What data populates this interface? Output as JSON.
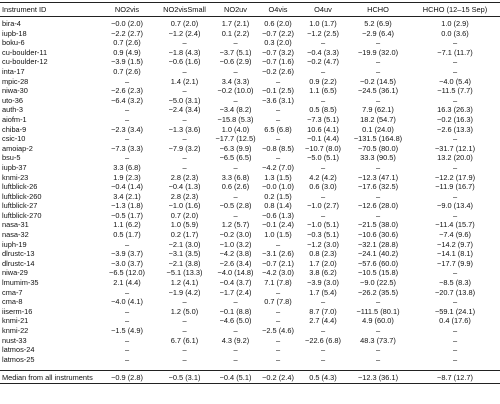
{
  "table": {
    "header": [
      "Instrument ID",
      "NO2vis",
      "NO2visSmall",
      "NO2uv",
      "O4vis",
      "O4uv",
      "HCHO",
      "HCHO (12–15 Sep)"
    ],
    "rows": [
      [
        "bira-4",
        "−0.0 (2.0)",
        "0.7 (2.0)",
        "1.7 (2.1)",
        "0.6 (2.0)",
        "1.0 (1.7)",
        "5.2 (6.9)",
        "1.0 (2.9)"
      ],
      [
        "iupb-18",
        "−2.2 (2.7)",
        "−1.2 (2.4)",
        "0.1 (2.2)",
        "−0.7 (2.2)",
        "−1.2 (2.5)",
        "−2.9 (6.4)",
        "0.0 (3.6)"
      ],
      [
        "boku-6",
        "0.7 (2.6)",
        "–",
        "–",
        "0.3 (2.0)",
        "–",
        "–",
        "–"
      ],
      [
        "cu-boulder-11",
        "0.9 (4.9)",
        "−1.8 (4.3)",
        "−3.7 (5.1)",
        "−0.7 (3.2)",
        "−0.4 (3.3)",
        "−19.9 (32.0)",
        "−7.1 (11.7)"
      ],
      [
        "cu-boulder-12",
        "−3.9 (1.5)",
        "−0.6 (1.6)",
        "−0.6 (2.9)",
        "−0.7 (1.6)",
        "−0.2 (4.7)",
        "–",
        "–"
      ],
      [
        "inta-17",
        "0.7 (2.6)",
        "–",
        "–",
        "−0.2 (2.6)",
        "–",
        "–",
        "–"
      ],
      [
        "mpic-28",
        "–",
        "1.4 (2.1)",
        "3.4 (3.3)",
        "–",
        "0.9 (2.2)",
        "−0.2 (14.5)",
        "−4.0 (5.4)"
      ],
      [
        "niwa-30",
        "−2.6 (2.3)",
        "–",
        "−0.2 (10.0)",
        "−0.1 (2.5)",
        "1.1 (6.5)",
        "−24.5 (36.1)",
        "−11.5 (7.7)"
      ],
      [
        "uto-36",
        "−6.4 (3.2)",
        "−5.0 (3.1)",
        "–",
        "−3.6 (3.1)",
        "–",
        "–",
        "–"
      ],
      [
        "auth-3",
        "–",
        "−2.4 (3.4)",
        "−3.4 (8.2)",
        "–",
        "0.5 (8.5)",
        "7.9 (62.1)",
        "16.3 (26.3)"
      ],
      [
        "aiofm-1",
        "–",
        "–",
        "−15.8 (5.3)",
        "–",
        "−7.3 (5.1)",
        "18.2 (54.7)",
        "−0.2 (16.3)"
      ],
      [
        "chiba-9",
        "−2.3 (3.4)",
        "−1.3 (3.6)",
        "1.0 (4.0)",
        "6.5 (6.8)",
        "10.6 (4.1)",
        "0.1 (24.0)",
        "−2.6 (13.3)"
      ],
      [
        "csic-10",
        "–",
        "–",
        "−17.7 (12.5)",
        "–",
        "−0.1 (4.4)",
        "−131.5 (164.8)",
        "–"
      ],
      [
        "amoiap-2",
        "−7.3 (3.3)",
        "−7.9 (3.2)",
        "−6.3 (9.9)",
        "−0.8 (8.5)",
        "−10.7 (8.0)",
        "−70.5 (80.0)",
        "−31.7 (12.1)"
      ],
      [
        "bsu-5",
        "–",
        "–",
        "−6.5 (6.5)",
        "–",
        "−5.0 (5.1)",
        "33.3 (90.5)",
        "13.2 (20.0)"
      ],
      [
        "iupb-37",
        "3.3 (6.8)",
        "–",
        "–",
        "−4.2 (7.0)",
        "–",
        "–",
        "–"
      ],
      [
        "knmi-23",
        "1.9 (2.3)",
        "2.8 (2.3)",
        "3.3 (6.8)",
        "1.3 (1.5)",
        "4.2 (4.2)",
        "−12.3 (47.1)",
        "−12.2 (17.9)"
      ],
      [
        "luftblick-26",
        "−0.4 (1.4)",
        "−0.4 (1.3)",
        "0.6 (2.6)",
        "−0.0 (1.0)",
        "0.6 (3.0)",
        "−17.6 (32.5)",
        "−11.9 (16.7)"
      ],
      [
        "luftblick-260",
        "3.4 (2.1)",
        "2.8 (2.3)",
        "–",
        "0.2 (1.5)",
        "–",
        "–",
        "–"
      ],
      [
        "luftblick-27",
        "−1.3 (1.8)",
        "−1.0 (1.6)",
        "−0.5 (2.8)",
        "0.8 (1.4)",
        "−1.0 (2.7)",
        "−12.6 (28.0)",
        "−9.0 (13.4)"
      ],
      [
        "luftblick-270",
        "−0.5 (1.7)",
        "0.7 (2.0)",
        "–",
        "−0.6 (1.3)",
        "–",
        "–",
        "–"
      ],
      [
        "nasa-31",
        "1.1 (6.2)",
        "1.0 (5.9)",
        "1.2 (5.7)",
        "−0.1 (2.4)",
        "−1.0 (5.1)",
        "−21.5 (38.0)",
        "−11.4 (15.7)"
      ],
      [
        "nasa-32",
        "0.5 (1.7)",
        "0.2 (1.7)",
        "−0.2 (3.0)",
        "1.0 (1.5)",
        "−0.3 (5.1)",
        "−10.6 (30.6)",
        "−7.4 (9.6)"
      ],
      [
        "iuph-19",
        "–",
        "−2.1 (3.0)",
        "−1.0 (3.2)",
        "–",
        "−1.2 (3.0)",
        "−32.1 (28.8)",
        "−14.2 (9.7)"
      ],
      [
        "dlrustc-13",
        "−3.9 (3.7)",
        "−3.1 (3.5)",
        "−4.2 (3.8)",
        "−3.1 (2.6)",
        "0.8 (2.3)",
        "−24.1 (40.2)",
        "−14.1 (8.1)"
      ],
      [
        "dlrustc-14",
        "−3.0 (3.7)",
        "−2.1 (3.8)",
        "−2.6 (3.4)",
        "−0.7 (2.1)",
        "1.7 (2.0)",
        "−57.6 (60.0)",
        "−17.7 (9.9)"
      ],
      [
        "niwa-29",
        "−6.5 (12.0)",
        "−5.1 (13.3)",
        "−4.0 (14.8)",
        "−4.2 (3.0)",
        "3.8 (6.2)",
        "−10.5 (15.8)",
        "–"
      ],
      [
        "lmumim-35",
        "2.1 (4.4)",
        "1.2 (4.1)",
        "−0.4 (3.7)",
        "7.1 (7.8)",
        "−3.9 (3.0)",
        "−9.0 (22.5)",
        "−8.5 (8.3)"
      ],
      [
        "cma-7",
        "–",
        "−1.9 (4.2)",
        "−1.7 (2.4)",
        "–",
        "1.7 (5.4)",
        "−26.2 (35.5)",
        "−20.7 (13.8)"
      ],
      [
        "cma-8",
        "−4.0 (4.1)",
        "–",
        "–",
        "0.7 (7.8)",
        "–",
        "–",
        "–"
      ],
      [
        "iiserm-16",
        "–",
        "1.2 (5.0)",
        "−0.1 (8.8)",
        "–",
        "8.7 (7.0)",
        "−111.5 (80.1)",
        "−59.1 (24.1)"
      ],
      [
        "knmi-21",
        "–",
        "–",
        "−4.6 (5.0)",
        "–",
        "2.7 (4.4)",
        "4.9 (60.0)",
        "0.4 (17.6)"
      ],
      [
        "knmi-22",
        "−1.5 (4.9)",
        "–",
        "–",
        "−2.5 (4.6)",
        "–",
        "–",
        "–"
      ],
      [
        "nust-33",
        "–",
        "6.7 (6.1)",
        "4.3 (9.2)",
        "–",
        "−22.6 (6.8)",
        "48.3 (73.7)",
        "–"
      ],
      [
        "latmos-24",
        "–",
        "–",
        "–",
        "–",
        "–",
        "–",
        "–"
      ],
      [
        "latmos-25",
        "–",
        "–",
        "–",
        "–",
        "–",
        "–",
        "–"
      ]
    ],
    "footer": [
      "Median from all instruments",
      "−0.9 (2.8)",
      "−0.5 (3.1)",
      "−0.4 (5.1)",
      "−0.2 (2.4)",
      "0.5 (4.3)",
      "−12.3 (36.1)",
      "−8.7 (12.7)"
    ]
  }
}
